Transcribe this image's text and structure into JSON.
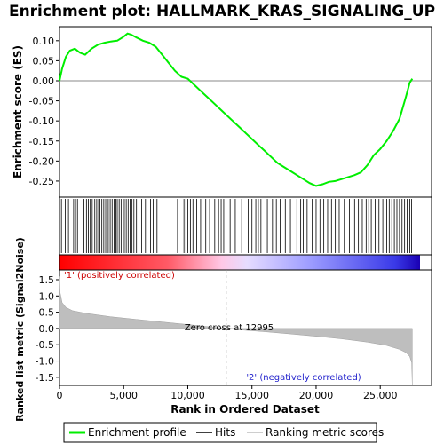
{
  "chart_data": {
    "type": "line",
    "title": "Enrichment plot: HALLMARK_KRAS_SIGNALING_UP",
    "panels": {
      "enrichment": {
        "ylabel": "Enrichment score (ES)",
        "ylim": [
          -0.29,
          0.135
        ],
        "yticks": [
          0.1,
          0.05,
          0.0,
          -0.05,
          -0.1,
          -0.15,
          -0.2,
          -0.25
        ],
        "ytick_labels": [
          "0.10",
          "0.05",
          "0.00",
          "-0.05",
          "-0.10",
          "-0.15",
          "-0.20",
          "-0.25"
        ],
        "series": [
          {
            "name": "Enrichment profile",
            "color": "#00ee00",
            "x": [
              0,
              200,
              500,
              800,
              1200,
              1600,
              2000,
              2500,
              3000,
              3500,
              4000,
              4500,
              5000,
              5300,
              5600,
              6000,
              6500,
              7000,
              7500,
              8000,
              8500,
              9000,
              9500,
              10000,
              10500,
              11000,
              11500,
              12000,
              12500,
              13000,
              13500,
              14000,
              14500,
              15000,
              15500,
              16000,
              16500,
              17000,
              17500,
              18000,
              18500,
              19000,
              19500,
              20000,
              20500,
              21000,
              21500,
              22000,
              22500,
              23000,
              23500,
              24000,
              24500,
              25000,
              25500,
              26000,
              26500,
              27000,
              27300,
              27500
            ],
            "y": [
              0.0,
              0.03,
              0.06,
              0.075,
              0.08,
              0.07,
              0.065,
              0.08,
              0.09,
              0.095,
              0.098,
              0.1,
              0.11,
              0.118,
              0.115,
              0.108,
              0.1,
              0.095,
              0.085,
              0.065,
              0.045,
              0.025,
              0.01,
              0.005,
              -0.01,
              -0.025,
              -0.04,
              -0.055,
              -0.07,
              -0.085,
              -0.1,
              -0.115,
              -0.13,
              -0.145,
              -0.16,
              -0.175,
              -0.19,
              -0.205,
              -0.215,
              -0.225,
              -0.235,
              -0.245,
              -0.255,
              -0.262,
              -0.258,
              -0.252,
              -0.25,
              -0.245,
              -0.24,
              -0.235,
              -0.228,
              -0.21,
              -0.185,
              -0.17,
              -0.15,
              -0.125,
              -0.095,
              -0.04,
              -0.005,
              0.005
            ]
          }
        ]
      },
      "hits": {
        "positions": [
          150,
          450,
          700,
          1100,
          1250,
          1400,
          1900,
          2100,
          2250,
          2400,
          2550,
          2750,
          2900,
          3050,
          3150,
          3300,
          3450,
          3600,
          3800,
          3950,
          4100,
          4250,
          4400,
          4500,
          4650,
          4800,
          4950,
          5050,
          5200,
          5350,
          5500,
          5650,
          5800,
          6000,
          6200,
          6400,
          6700,
          7100,
          7300,
          7600,
          9200,
          9700,
          9850,
          10000,
          10200,
          10400,
          10700,
          11000,
          11400,
          11700,
          12100,
          12400,
          12600,
          12800,
          13300,
          13700,
          14200,
          14700,
          15000,
          15300,
          15500,
          15700,
          16200,
          16600,
          16900,
          17200,
          17600,
          18000,
          18500,
          18800,
          19000,
          19300,
          19700,
          20000,
          20300,
          20600,
          20900,
          21200,
          21500,
          21800,
          22200,
          22600,
          23000,
          23300,
          23600,
          23900,
          24100,
          24300,
          24600,
          24900,
          25200,
          25500,
          25700,
          25900,
          26100,
          26300,
          26500,
          26700,
          26900,
          27100,
          27300,
          27450
        ]
      },
      "ranked_metric": {
        "ylabel": "Ranked list metric (Signal2Noise)",
        "xlabel": "Rank in Ordered Dataset",
        "xlim": [
          0,
          29000
        ],
        "xticks": [
          0,
          5000,
          10000,
          15000,
          20000,
          25000
        ],
        "xtick_labels": [
          "0",
          "5,000",
          "10,000",
          "15,000",
          "20,000",
          "25,000"
        ],
        "ylim": [
          -1.75,
          1.8
        ],
        "yticks": [
          1.5,
          1.0,
          0.5,
          0.0,
          -0.5,
          -1.0,
          -1.5
        ],
        "ytick_labels": [
          "1.5",
          "1.0",
          "0.5",
          "0.0",
          "-0.5",
          "-1.0",
          "-1.5"
        ],
        "total": 27500,
        "x": [
          0,
          50,
          200,
          500,
          1000,
          2000,
          4000,
          6000,
          8000,
          10000,
          11000,
          12000,
          12995,
          14000,
          16000,
          18000,
          20000,
          22000,
          24000,
          25500,
          26500,
          27000,
          27300,
          27450,
          27500
        ],
        "y": [
          1.6,
          1.1,
          0.8,
          0.65,
          0.55,
          0.47,
          0.36,
          0.28,
          0.2,
          0.12,
          0.08,
          0.04,
          0.0,
          -0.04,
          -0.1,
          -0.17,
          -0.24,
          -0.32,
          -0.42,
          -0.52,
          -0.64,
          -0.74,
          -0.86,
          -1.05,
          -1.72
        ],
        "annotations": {
          "pos": "'1' (positively correlated)",
          "neg": "'2' (negatively correlated)",
          "zero": "Zero cross at 12995",
          "zero_x": 12995
        }
      }
    },
    "legend": {
      "placement": "bottom",
      "entries": [
        "Enrichment profile",
        "Hits",
        "Ranking metric scores"
      ]
    }
  }
}
